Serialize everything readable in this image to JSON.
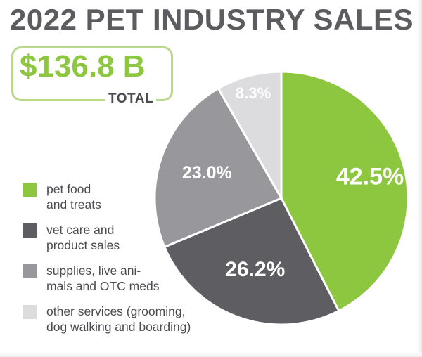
{
  "title": "2022 PET INDUSTRY SALES",
  "total": {
    "value": "$136.8 B",
    "label": "TOTAL"
  },
  "colors": {
    "accent_green": "#8dc63f",
    "title_gray": "#5b5b60",
    "box_border": "#b9d88a"
  },
  "chart_data": {
    "type": "pie",
    "title": "2022 PET INDUSTRY SALES",
    "slices": [
      {
        "name": "pet food and treats",
        "value": 42.5,
        "label": "42.5%",
        "color": "#8dc63f",
        "label_color": "#ffffff"
      },
      {
        "name": "vet care and product sales",
        "value": 26.2,
        "label": "26.2%",
        "color": "#5d5d62",
        "label_color": "#ffffff"
      },
      {
        "name": "supplies, live animals and OTC meds",
        "value": 23.0,
        "label": "23.0%",
        "color": "#98989c",
        "label_color": "#ffffff"
      },
      {
        "name": "other services (grooming, dog walking and boarding)",
        "value": 8.3,
        "label": "8.3%",
        "color": "#dcdcde",
        "label_color": "#ffffff"
      }
    ],
    "legend": [
      {
        "lines": [
          "pet food",
          "and treats"
        ],
        "color": "#8dc63f"
      },
      {
        "lines": [
          "vet care and",
          "product sales"
        ],
        "color": "#5d5d62"
      },
      {
        "lines": [
          "supplies, live ani-",
          "mals and OTC meds"
        ],
        "color": "#98989c"
      },
      {
        "lines": [
          "other services (grooming,",
          "dog walking and boarding)"
        ],
        "color": "#dcdcde"
      }
    ]
  }
}
